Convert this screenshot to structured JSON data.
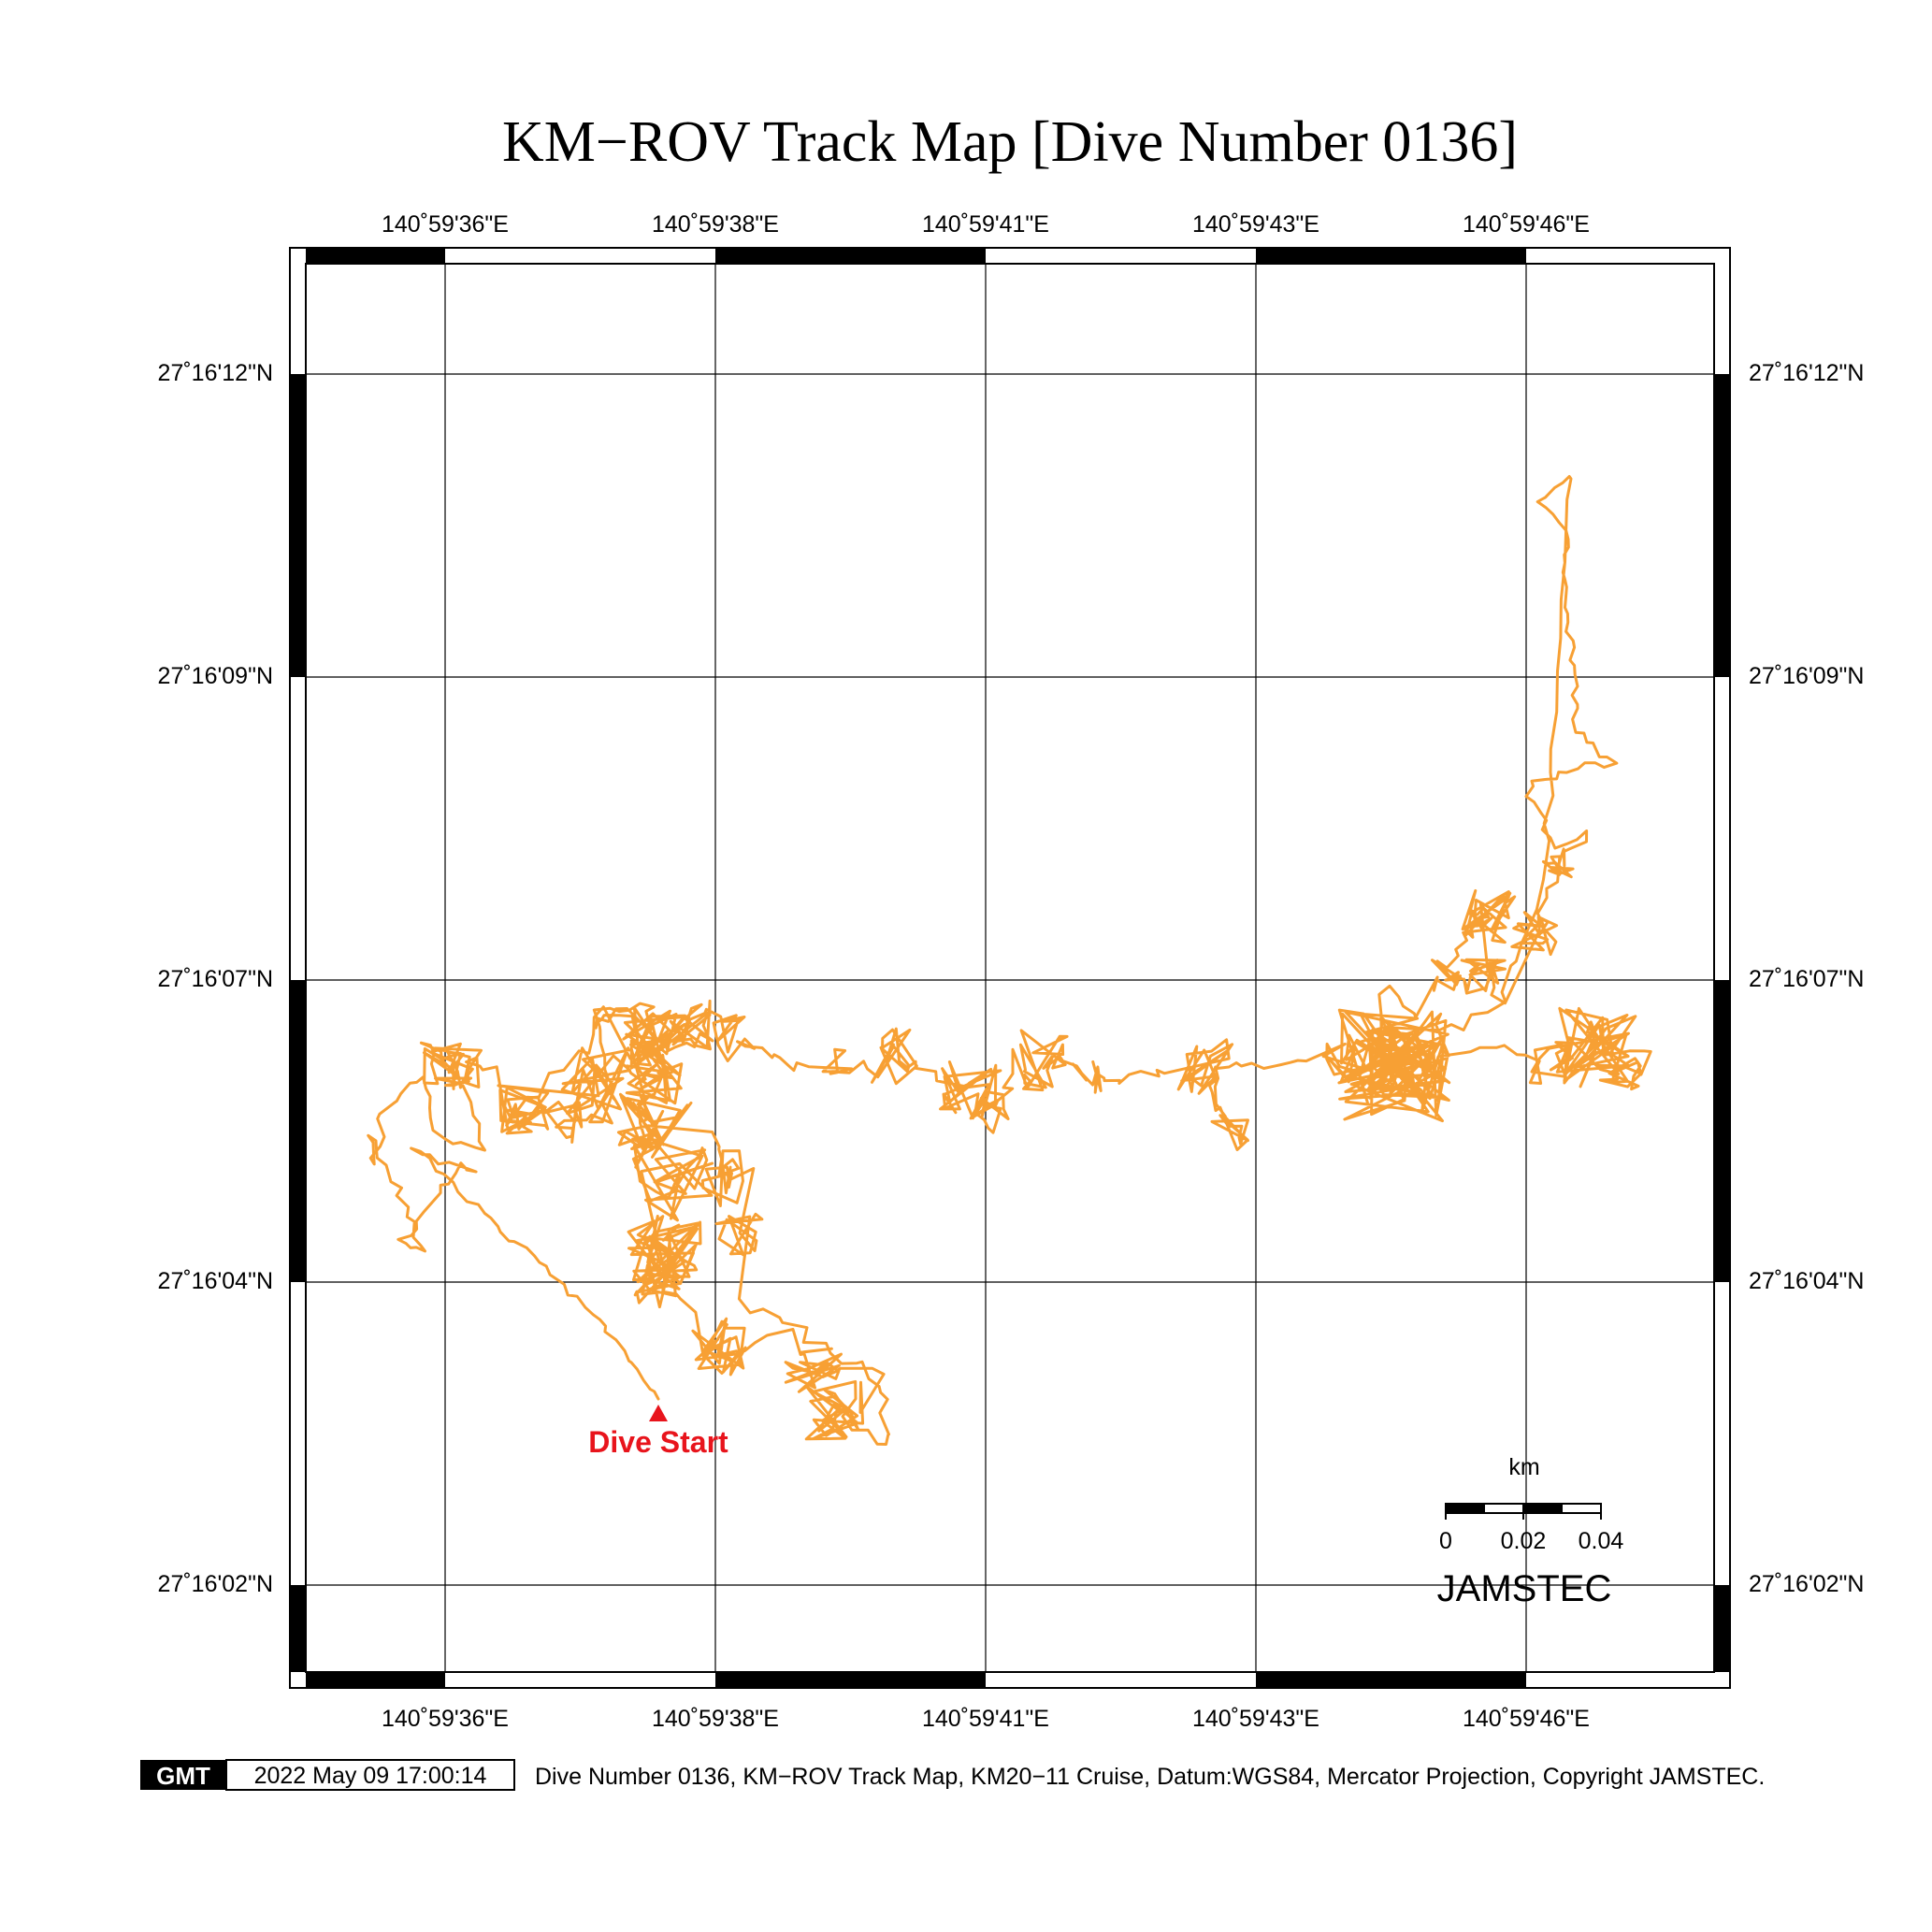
{
  "title": "KM−ROV Track Map [Dive Number 0136]",
  "lon_labels": [
    "140˚59'36\"E",
    "140˚59'38\"E",
    "140˚59'41\"E",
    "140˚59'43\"E",
    "140˚59'46\"E"
  ],
  "lat_labels": [
    "27˚16'12\"N",
    "27˚16'09\"N",
    "27˚16'07\"N",
    "27˚16'04\"N",
    "27˚16'02\"N"
  ],
  "start_label": "Dive Start",
  "scale_bar": {
    "unit": "km",
    "ticks": [
      "0",
      "0.02",
      "0.04"
    ]
  },
  "brand": "JAMSTEC",
  "gmt_logo": "GMT",
  "timestamp": "2022 May 09 17:00:14",
  "footer": "Dive Number 0136, KM−ROV Track Map, KM20−11 Cruise, Datum:WGS84, Mercator Projection, Copyright JAMSTEC.",
  "colors": {
    "track": "#f7a034",
    "start_marker": "#e8141c",
    "frame": "#000000"
  },
  "track_seed": 136
}
